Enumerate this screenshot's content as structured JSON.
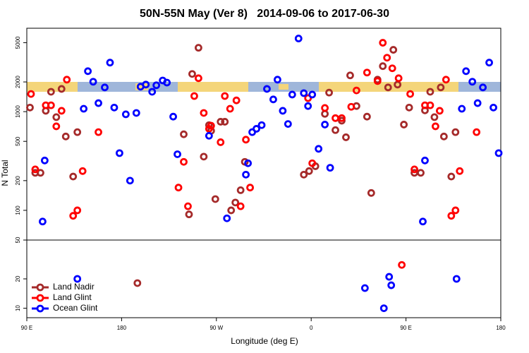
{
  "chart_data": {
    "type": "scatter",
    "title": "50N-55N May (Ver 8)   2014-09-06 to 2017-06-30",
    "ylabel": "N Total",
    "xlabel": "Longitude (deg E)",
    "xlim": [
      90,
      540
    ],
    "xticks": [
      {
        "value": 90,
        "label": "90 E"
      },
      {
        "value": 180,
        "label": "180"
      },
      {
        "value": 270,
        "label": "90 W"
      },
      {
        "value": 360,
        "label": "0"
      },
      {
        "value": 450,
        "label": "90 E"
      },
      {
        "value": 540,
        "label": "180"
      }
    ],
    "log_scale": true,
    "legend": "lower left",
    "panels": [
      {
        "ylim": [
          50,
          7000
        ],
        "yticks": [
          100,
          200,
          500,
          1000,
          2000,
          5000
        ]
      },
      {
        "ylim": [
          8,
          50
        ],
        "yticks": [
          10,
          20,
          50
        ]
      }
    ],
    "series": [
      {
        "name": "Land Nadir",
        "color": "#a52a2a",
        "x": [
          93,
          98,
          103,
          108,
          113,
          118,
          123,
          127,
          134,
          138,
          195,
          239,
          244,
          247,
          253,
          258,
          263,
          265,
          269,
          274,
          278,
          284,
          288,
          293,
          297,
          353,
          358,
          364,
          373,
          377,
          383,
          389,
          393,
          397,
          403,
          413,
          417,
          423,
          428,
          433,
          438,
          442,
          448,
          453,
          458,
          464,
          468,
          473,
          477,
          483,
          486,
          493,
          497
        ],
        "values": [
          1100,
          240,
          240,
          1020,
          1590,
          880,
          1700,
          560,
          220,
          620,
          18.1,
          590,
          91,
          2410,
          4440,
          350,
          730,
          640,
          130,
          790,
          790,
          100,
          120,
          160,
          310,
          230,
          250,
          280,
          950,
          1560,
          650,
          810,
          550,
          2330,
          1140,
          890,
          150,
          2110,
          2890,
          1760,
          4230,
          1880,
          740,
          1100,
          240,
          240,
          1030,
          1590,
          880,
          1760,
          560,
          220,
          620
        ]
      },
      {
        "name": "Land Glint",
        "color": "#ff0000",
        "x": [
          94,
          98,
          108,
          113,
          118,
          123,
          128,
          134,
          138,
          143,
          158,
          234,
          239,
          243,
          249,
          253,
          258,
          263,
          265,
          274,
          278,
          283,
          289,
          293,
          298,
          302,
          357,
          361,
          373,
          383,
          389,
          398,
          403,
          413,
          423,
          428,
          432,
          437,
          443,
          446,
          454,
          458,
          468,
          473,
          478,
          482,
          488,
          493,
          497,
          501,
          517
        ],
        "values": [
          1510,
          260,
          1160,
          1160,
          710,
          1020,
          2110,
          88,
          100,
          250,
          620,
          170,
          310,
          110,
          1440,
          2180,
          970,
          670,
          720,
          490,
          1440,
          1070,
          1300,
          110,
          520,
          170,
          1370,
          300,
          1090,
          860,
          860,
          1120,
          1640,
          2490,
          2040,
          4990,
          3520,
          2750,
          2180,
          27.8,
          1510,
          260,
          1160,
          1160,
          710,
          1020,
          2110,
          88,
          100,
          250,
          620
        ]
      },
      {
        "name": "Ocean Glint",
        "color": "#0000ff",
        "x": [
          107,
          105,
          138,
          144,
          148,
          153,
          158,
          164,
          169,
          173,
          178,
          184,
          188,
          194,
          198,
          203,
          209,
          213,
          219,
          223,
          229,
          233,
          263,
          280,
          298,
          300,
          304,
          308,
          313,
          318,
          324,
          328,
          333,
          338,
          342,
          348,
          353,
          357,
          361,
          367,
          373,
          378,
          411,
          429,
          434,
          436,
          466,
          468,
          498,
          503,
          507,
          513,
          518,
          523,
          529,
          533,
          538
        ],
        "values": [
          320,
          77,
          20,
          1070,
          2570,
          2010,
          1220,
          1760,
          3140,
          1100,
          380,
          940,
          200,
          970,
          1790,
          1880,
          1590,
          1850,
          2070,
          1970,
          890,
          370,
          570,
          83,
          230,
          300,
          620,
          670,
          730,
          1700,
          1330,
          2110,
          1020,
          750,
          1490,
          5510,
          1540,
          1140,
          1490,
          420,
          740,
          270,
          16.1,
          10,
          21,
          17.2,
          77,
          320,
          20,
          1070,
          2570,
          2010,
          1220,
          1760,
          3140,
          1100,
          380
        ]
      }
    ]
  }
}
